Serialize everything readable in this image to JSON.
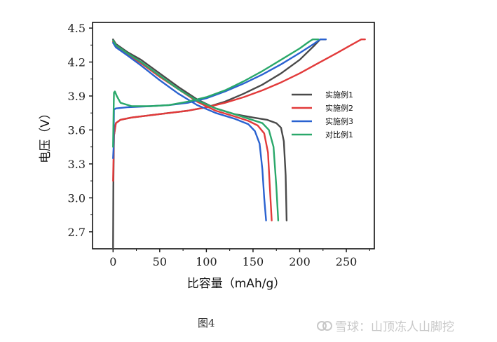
{
  "chart_data": {
    "type": "line",
    "xlabel": "比容量（mAh/g）",
    "ylabel": "电压（V）",
    "xlim": [
      -22,
      280
    ],
    "ylim": [
      2.55,
      4.55
    ],
    "xticks": [
      0,
      50,
      100,
      150,
      200,
      250
    ],
    "yticks": [
      2.7,
      3.0,
      3.3,
      3.6,
      3.9,
      4.2,
      4.5
    ],
    "legend_position": "right",
    "grid": false,
    "series": [
      {
        "name": "实施例1",
        "color": "#4a4a4a",
        "charge": [
          [
            0,
            2.55
          ],
          [
            0.3,
            3.1
          ],
          [
            1,
            3.55
          ],
          [
            3,
            3.66
          ],
          [
            8,
            3.69
          ],
          [
            20,
            3.71
          ],
          [
            40,
            3.73
          ],
          [
            60,
            3.75
          ],
          [
            80,
            3.77
          ],
          [
            100,
            3.8
          ],
          [
            120,
            3.85
          ],
          [
            140,
            3.92
          ],
          [
            160,
            4.0
          ],
          [
            180,
            4.1
          ],
          [
            200,
            4.22
          ],
          [
            215,
            4.34
          ],
          [
            222,
            4.4
          ],
          [
            228,
            4.4
          ]
        ],
        "discharge": [
          [
            0,
            4.4
          ],
          [
            3,
            4.36
          ],
          [
            15,
            4.29
          ],
          [
            30,
            4.22
          ],
          [
            50,
            4.1
          ],
          [
            70,
            3.98
          ],
          [
            90,
            3.87
          ],
          [
            110,
            3.79
          ],
          [
            130,
            3.74
          ],
          [
            150,
            3.71
          ],
          [
            165,
            3.69
          ],
          [
            175,
            3.66
          ],
          [
            180,
            3.62
          ],
          [
            183,
            3.5
          ],
          [
            185,
            3.2
          ],
          [
            186,
            2.8
          ]
        ]
      },
      {
        "name": "实施例2",
        "color": "#e23a3a",
        "charge": [
          [
            0,
            3.15
          ],
          [
            1,
            3.55
          ],
          [
            3,
            3.66
          ],
          [
            8,
            3.69
          ],
          [
            20,
            3.71
          ],
          [
            40,
            3.73
          ],
          [
            60,
            3.75
          ],
          [
            80,
            3.77
          ],
          [
            100,
            3.8
          ],
          [
            120,
            3.84
          ],
          [
            140,
            3.89
          ],
          [
            160,
            3.95
          ],
          [
            180,
            4.02
          ],
          [
            200,
            4.1
          ],
          [
            220,
            4.19
          ],
          [
            240,
            4.28
          ],
          [
            255,
            4.35
          ],
          [
            266,
            4.4
          ],
          [
            270,
            4.4
          ]
        ],
        "discharge": [
          [
            0,
            4.38
          ],
          [
            3,
            4.34
          ],
          [
            15,
            4.27
          ],
          [
            30,
            4.19
          ],
          [
            50,
            4.07
          ],
          [
            70,
            3.96
          ],
          [
            90,
            3.85
          ],
          [
            110,
            3.77
          ],
          [
            130,
            3.72
          ],
          [
            145,
            3.68
          ],
          [
            155,
            3.64
          ],
          [
            162,
            3.57
          ],
          [
            166,
            3.4
          ],
          [
            168,
            3.1
          ],
          [
            170,
            2.8
          ]
        ]
      },
      {
        "name": "实施例3",
        "color": "#2a62d0",
        "charge": [
          [
            0,
            3.35
          ],
          [
            0.5,
            3.44
          ],
          [
            1,
            3.78
          ],
          [
            3,
            3.79
          ],
          [
            15,
            3.8
          ],
          [
            40,
            3.81
          ],
          [
            60,
            3.82
          ],
          [
            80,
            3.84
          ],
          [
            100,
            3.88
          ],
          [
            120,
            3.94
          ],
          [
            140,
            4.01
          ],
          [
            160,
            4.09
          ],
          [
            180,
            4.18
          ],
          [
            200,
            4.28
          ],
          [
            215,
            4.36
          ],
          [
            222,
            4.4
          ],
          [
            228,
            4.4
          ]
        ],
        "discharge": [
          [
            0,
            4.37
          ],
          [
            3,
            4.33
          ],
          [
            15,
            4.26
          ],
          [
            30,
            4.17
          ],
          [
            50,
            4.04
          ],
          [
            70,
            3.92
          ],
          [
            90,
            3.82
          ],
          [
            110,
            3.75
          ],
          [
            130,
            3.7
          ],
          [
            145,
            3.65
          ],
          [
            152,
            3.59
          ],
          [
            157,
            3.48
          ],
          [
            160,
            3.25
          ],
          [
            162,
            3.0
          ],
          [
            164,
            2.8
          ]
        ]
      },
      {
        "name": "对比例1",
        "color": "#2aa86a",
        "charge": [
          [
            0,
            3.45
          ],
          [
            0.5,
            3.75
          ],
          [
            1,
            3.93
          ],
          [
            2,
            3.94
          ],
          [
            4,
            3.9
          ],
          [
            8,
            3.84
          ],
          [
            20,
            3.81
          ],
          [
            40,
            3.81
          ],
          [
            60,
            3.82
          ],
          [
            80,
            3.85
          ],
          [
            100,
            3.89
          ],
          [
            120,
            3.95
          ],
          [
            140,
            4.03
          ],
          [
            160,
            4.12
          ],
          [
            180,
            4.22
          ],
          [
            200,
            4.32
          ],
          [
            210,
            4.38
          ],
          [
            214,
            4.4
          ],
          [
            220,
            4.4
          ]
        ],
        "discharge": [
          [
            0,
            4.39
          ],
          [
            3,
            4.35
          ],
          [
            15,
            4.28
          ],
          [
            30,
            4.2
          ],
          [
            50,
            4.08
          ],
          [
            70,
            3.96
          ],
          [
            90,
            3.86
          ],
          [
            110,
            3.79
          ],
          [
            130,
            3.74
          ],
          [
            145,
            3.7
          ],
          [
            160,
            3.66
          ],
          [
            167,
            3.6
          ],
          [
            172,
            3.45
          ],
          [
            175,
            3.1
          ],
          [
            177,
            2.8
          ]
        ]
      }
    ]
  },
  "caption": "图4",
  "watermark": "雪球：山顶冻人山脚挖"
}
